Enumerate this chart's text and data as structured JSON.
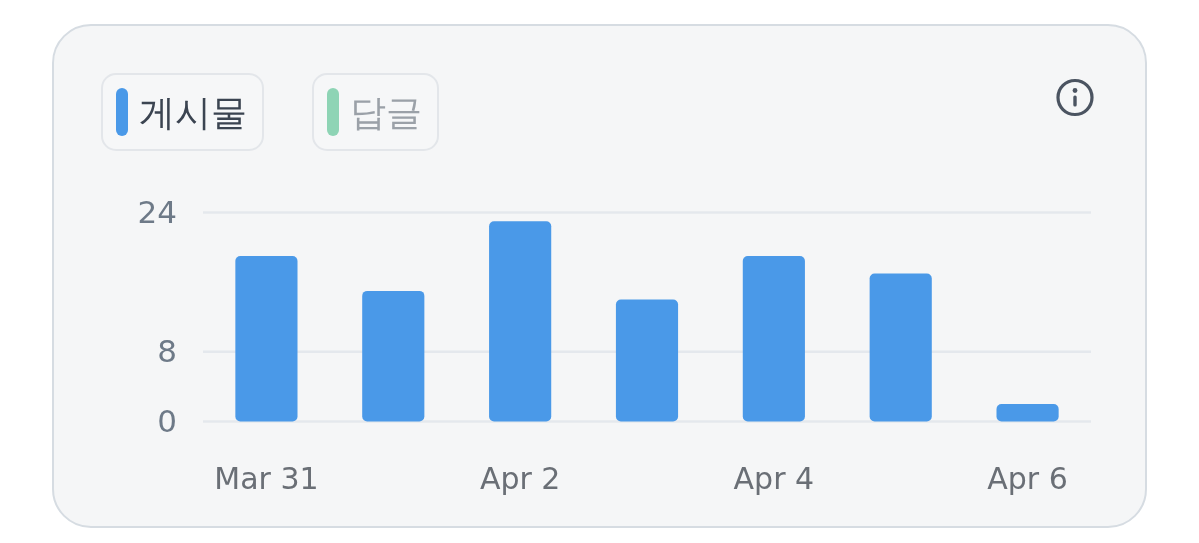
{
  "chart_data": {
    "type": "bar",
    "categories": [
      "Mar 31",
      null,
      "Apr 2",
      null,
      "Apr 4",
      null,
      "Apr 6"
    ],
    "series": [
      {
        "name": "게시물",
        "color": "#4a99e8",
        "values": [
          19,
          15,
          23,
          14,
          19,
          17,
          2
        ]
      },
      {
        "name": "답글",
        "color": "#8ed4b5",
        "values": [
          null,
          null,
          null,
          null,
          null,
          null,
          null
        ]
      }
    ],
    "ylim": [
      0,
      24
    ],
    "yticks": [
      0,
      8,
      24
    ],
    "grid": "y",
    "legend": "top left"
  }
}
